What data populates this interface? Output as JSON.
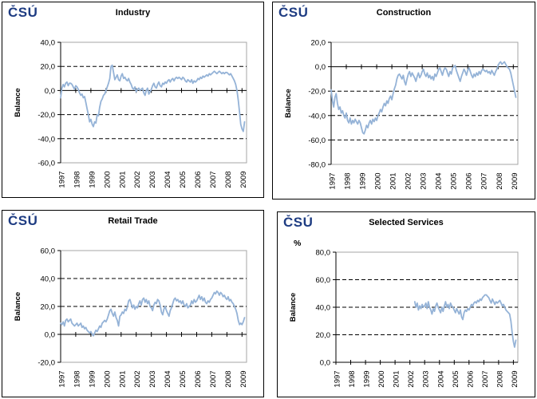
{
  "logo_text": "ČSÚ",
  "colors": {
    "line": "#95B3D7",
    "logo": "#1E3C82",
    "plot_border": "#A6A6A6",
    "axis": "#000000",
    "text": "#000000"
  },
  "chart_data": [
    {
      "type": "line",
      "title": "Industry",
      "ylabel": "Balance",
      "unit_label": "",
      "ylim": [
        -60,
        40
      ],
      "yticks": [
        40,
        20,
        0,
        -20,
        -40,
        -60
      ],
      "ytick_labels": [
        "40,0",
        "20,0",
        "0,0",
        "-20,0",
        "-40,0",
        "-60,0"
      ],
      "dashed_gridlines": [
        20,
        -20,
        -40
      ],
      "category_axis_at": 0,
      "x_min": 1997,
      "x_max": 2009.3,
      "year_ticks": [
        1997,
        1998,
        1999,
        2000,
        2001,
        2002,
        2003,
        2004,
        2005,
        2006,
        2007,
        2008,
        2009
      ],
      "series": {
        "name": "Balance",
        "start": 1997.0,
        "interval": 0.08333,
        "values": [
          -6,
          2,
          5,
          3,
          6,
          7,
          4,
          6,
          6,
          5,
          3,
          1,
          4,
          3,
          1,
          -2,
          -4,
          -3,
          -6,
          -5,
          -10,
          -15,
          -20,
          -26,
          -24,
          -28,
          -30,
          -26,
          -27,
          -20,
          -21,
          -14,
          -9,
          -7,
          -4,
          -3,
          0,
          3,
          6,
          10,
          20,
          21,
          15,
          9,
          11,
          13,
          9,
          8,
          12,
          14,
          10,
          11,
          9,
          8,
          10,
          7,
          5,
          2,
          1,
          3,
          -1,
          1,
          2,
          0,
          1,
          2,
          -2,
          -4,
          0,
          2,
          -3,
          -1,
          1,
          4,
          6,
          3,
          2,
          5,
          7,
          4,
          3,
          6,
          5,
          7,
          6,
          8,
          9,
          7,
          9,
          10,
          8,
          10,
          11,
          10,
          11,
          10,
          9,
          11,
          10,
          8,
          7,
          9,
          8,
          7,
          9,
          6,
          8,
          7,
          8,
          10,
          9,
          11,
          10,
          12,
          11,
          12,
          13,
          12,
          14,
          13,
          14,
          15,
          16,
          15,
          14,
          15,
          16,
          15,
          14,
          15,
          14,
          15,
          15,
          14,
          13,
          14,
          12,
          10,
          8,
          5,
          0,
          -8,
          -18,
          -28,
          -32,
          -34,
          -26
        ]
      }
    },
    {
      "type": "line",
      "title": "Construction",
      "ylabel": "Balance",
      "unit_label": "",
      "ylim": [
        -80,
        20
      ],
      "yticks": [
        20,
        0,
        -20,
        -40,
        -60,
        -80
      ],
      "ytick_labels": [
        "20,0",
        "0,0",
        "-20,0",
        "-40,0",
        "-60,0",
        "-80,0"
      ],
      "dashed_gridlines": [
        -20,
        -40,
        -60
      ],
      "category_axis_at": 0,
      "x_min": 1997,
      "x_max": 2009.3,
      "year_ticks": [
        1997,
        1998,
        1999,
        2000,
        2001,
        2002,
        2003,
        2004,
        2005,
        2006,
        2007,
        2008,
        2009
      ],
      "series": {
        "name": "Balance",
        "start": 1997.0,
        "interval": 0.08333,
        "values": [
          -19,
          -28,
          -33,
          -25,
          -22,
          -30,
          -35,
          -33,
          -38,
          -36,
          -40,
          -42,
          -38,
          -44,
          -46,
          -42,
          -47,
          -44,
          -46,
          -43,
          -45,
          -47,
          -44,
          -46,
          -50,
          -54,
          -55,
          -52,
          -48,
          -50,
          -46,
          -44,
          -47,
          -43,
          -45,
          -42,
          -44,
          -40,
          -38,
          -35,
          -37,
          -33,
          -30,
          -32,
          -28,
          -30,
          -26,
          -24,
          -27,
          -22,
          -18,
          -15,
          -10,
          -7,
          -6,
          -8,
          -10,
          -7,
          -12,
          -15,
          -10,
          -6,
          -4,
          -8,
          -5,
          -7,
          -9,
          -12,
          -8,
          -5,
          -9,
          -7,
          -4,
          -2,
          -6,
          -8,
          -5,
          -9,
          -7,
          -10,
          -8,
          -11,
          -6,
          -8,
          -5,
          -2,
          -1,
          -4,
          -7,
          -3,
          -1,
          -2,
          -5,
          -8,
          -4,
          -6,
          -1,
          0,
          1,
          -3,
          -6,
          -9,
          -12,
          -8,
          -5,
          -2,
          -4,
          -7,
          -3,
          -1,
          -4,
          -7,
          -9,
          -6,
          -8,
          -5,
          -7,
          -4,
          -6,
          -3,
          -2,
          -3,
          -4,
          -3,
          -5,
          -4,
          -6,
          -3,
          -5,
          -7,
          -4,
          -2,
          1,
          3,
          4,
          2,
          3,
          4,
          2,
          0,
          -1,
          -2,
          -5,
          -10,
          -15,
          -20,
          -25
        ]
      }
    },
    {
      "type": "line",
      "title": "Retail Trade",
      "ylabel": "Balance",
      "unit_label": "",
      "ylim": [
        -20,
        60
      ],
      "yticks": [
        60,
        40,
        20,
        0,
        -20
      ],
      "ytick_labels": [
        "60,0",
        "40,0",
        "20,0",
        "0,0",
        "-20,0"
      ],
      "dashed_gridlines": [
        40,
        20
      ],
      "category_axis_at": 0,
      "x_min": 1997,
      "x_max": 2009.3,
      "year_ticks": [
        1997,
        1998,
        1999,
        2000,
        2001,
        2002,
        2003,
        2004,
        2005,
        2006,
        2007,
        2008,
        2009
      ],
      "series": {
        "name": "Balance",
        "start": 1997.0,
        "interval": 0.08333,
        "values": [
          8,
          7,
          9,
          6,
          10,
          11,
          9,
          10,
          11,
          8,
          7,
          6,
          7,
          8,
          6,
          7,
          8,
          5,
          6,
          4,
          5,
          3,
          2,
          1,
          2,
          0,
          -1,
          1,
          3,
          2,
          4,
          6,
          5,
          8,
          9,
          10,
          9,
          11,
          14,
          17,
          18,
          15,
          13,
          16,
          12,
          10,
          6,
          13,
          14,
          16,
          15,
          18,
          17,
          20,
          24,
          25,
          22,
          19,
          21,
          18,
          20,
          19,
          22,
          24,
          21,
          25,
          26,
          23,
          25,
          22,
          24,
          20,
          19,
          17,
          21,
          23,
          22,
          25,
          24,
          21,
          16,
          14,
          18,
          20,
          17,
          15,
          13,
          17,
          19,
          22,
          25,
          26,
          24,
          25,
          23,
          24,
          22,
          24,
          21,
          20,
          22,
          19,
          20,
          21,
          24,
          22,
          25,
          23,
          24,
          26,
          28,
          25,
          27,
          24,
          26,
          23,
          22,
          24,
          23,
          25,
          26,
          28,
          30,
          29,
          31,
          30,
          28,
          30,
          29,
          27,
          28,
          26,
          25,
          27,
          24,
          25,
          23,
          22,
          20,
          18,
          15,
          10,
          7,
          8,
          7,
          9,
          12
        ]
      }
    },
    {
      "type": "line",
      "title": "Selected Services",
      "ylabel": "Balance",
      "unit_label": "%",
      "ylim": [
        0,
        80
      ],
      "yticks": [
        80,
        60,
        40,
        20,
        0
      ],
      "ytick_labels": [
        "80,0",
        "60,0",
        "40,0",
        "20,0",
        "0,0"
      ],
      "dashed_gridlines": [
        60,
        40,
        20
      ],
      "category_axis_at": 0,
      "x_min": 1997,
      "x_max": 2009.3,
      "year_ticks": [
        1997,
        1998,
        1999,
        2000,
        2001,
        2002,
        2003,
        2004,
        2005,
        2006,
        2007,
        2008,
        2009
      ],
      "series": {
        "name": "Balance",
        "start": 2002.33,
        "interval": 0.08333,
        "values": [
          44,
          40,
          43,
          38,
          41,
          39,
          42,
          40,
          41,
          43,
          39,
          44,
          40,
          38,
          35,
          39,
          37,
          41,
          43,
          40,
          38,
          36,
          40,
          37,
          41,
          44,
          40,
          42,
          39,
          43,
          41,
          40,
          38,
          36,
          39,
          37,
          35,
          38,
          33,
          31,
          36,
          38,
          37,
          39,
          38,
          40,
          42,
          41,
          43,
          44,
          43,
          45,
          44,
          46,
          45,
          47,
          48,
          49,
          49,
          48,
          47,
          45,
          43,
          46,
          44,
          42,
          44,
          43,
          44,
          45,
          43,
          41,
          42,
          40,
          38,
          37,
          36,
          35,
          30,
          22,
          15,
          11,
          16
        ]
      }
    }
  ]
}
